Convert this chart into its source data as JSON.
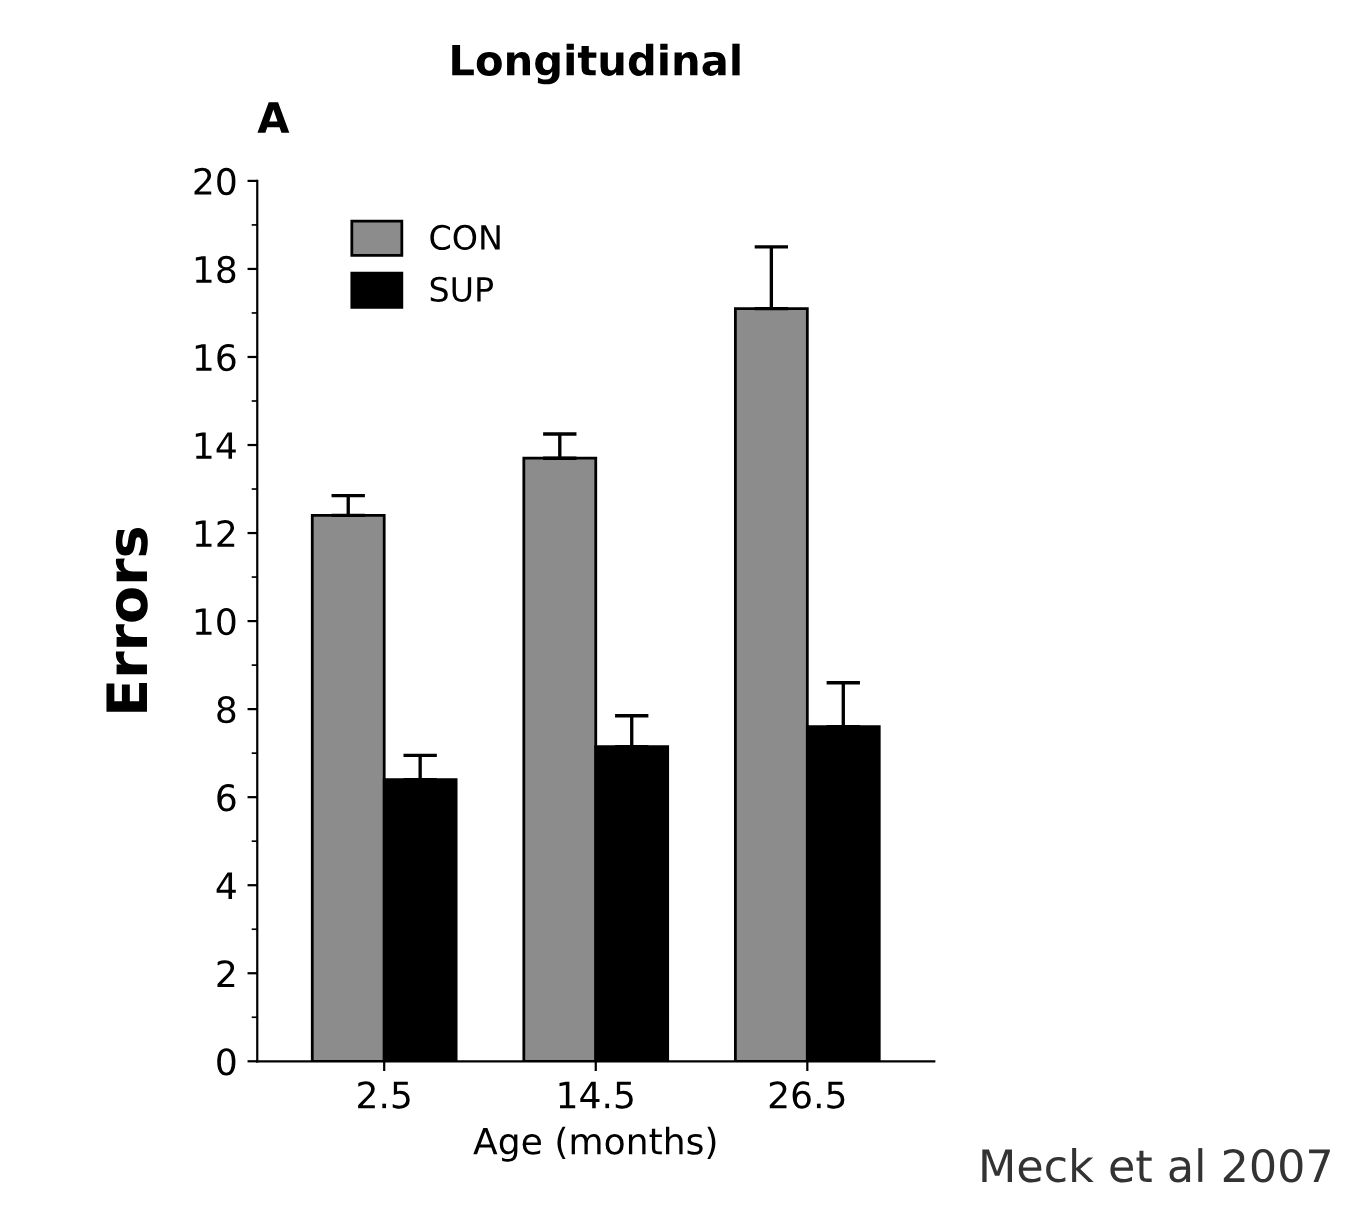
{
  "chart_data": {
    "type": "bar",
    "title": "Longitudinal",
    "xlabel": "Age (months)",
    "ylabel": "Errors",
    "categories": [
      "2.5",
      "14.5",
      "26.5"
    ],
    "series": [
      {
        "name": "CON",
        "color": "#8c8c8c",
        "values": [
          12.4,
          13.7,
          17.1
        ],
        "errors": [
          [
            12.4,
            12.85
          ],
          [
            13.7,
            14.25
          ],
          [
            17.1,
            18.5
          ]
        ]
      },
      {
        "name": "SUP",
        "color": "#000000",
        "values": [
          6.4,
          7.15,
          7.6
        ],
        "errors": [
          [
            6.4,
            6.95
          ],
          [
            7.15,
            7.85
          ],
          [
            7.6,
            8.6
          ]
        ]
      }
    ],
    "ylim": [
      0,
      20
    ],
    "yticks": [
      0,
      2,
      4,
      6,
      8,
      10,
      12,
      14,
      16,
      18,
      20
    ],
    "grid": false,
    "legend": "top left",
    "annotations": [
      "A",
      "Meck et al 2007"
    ]
  }
}
